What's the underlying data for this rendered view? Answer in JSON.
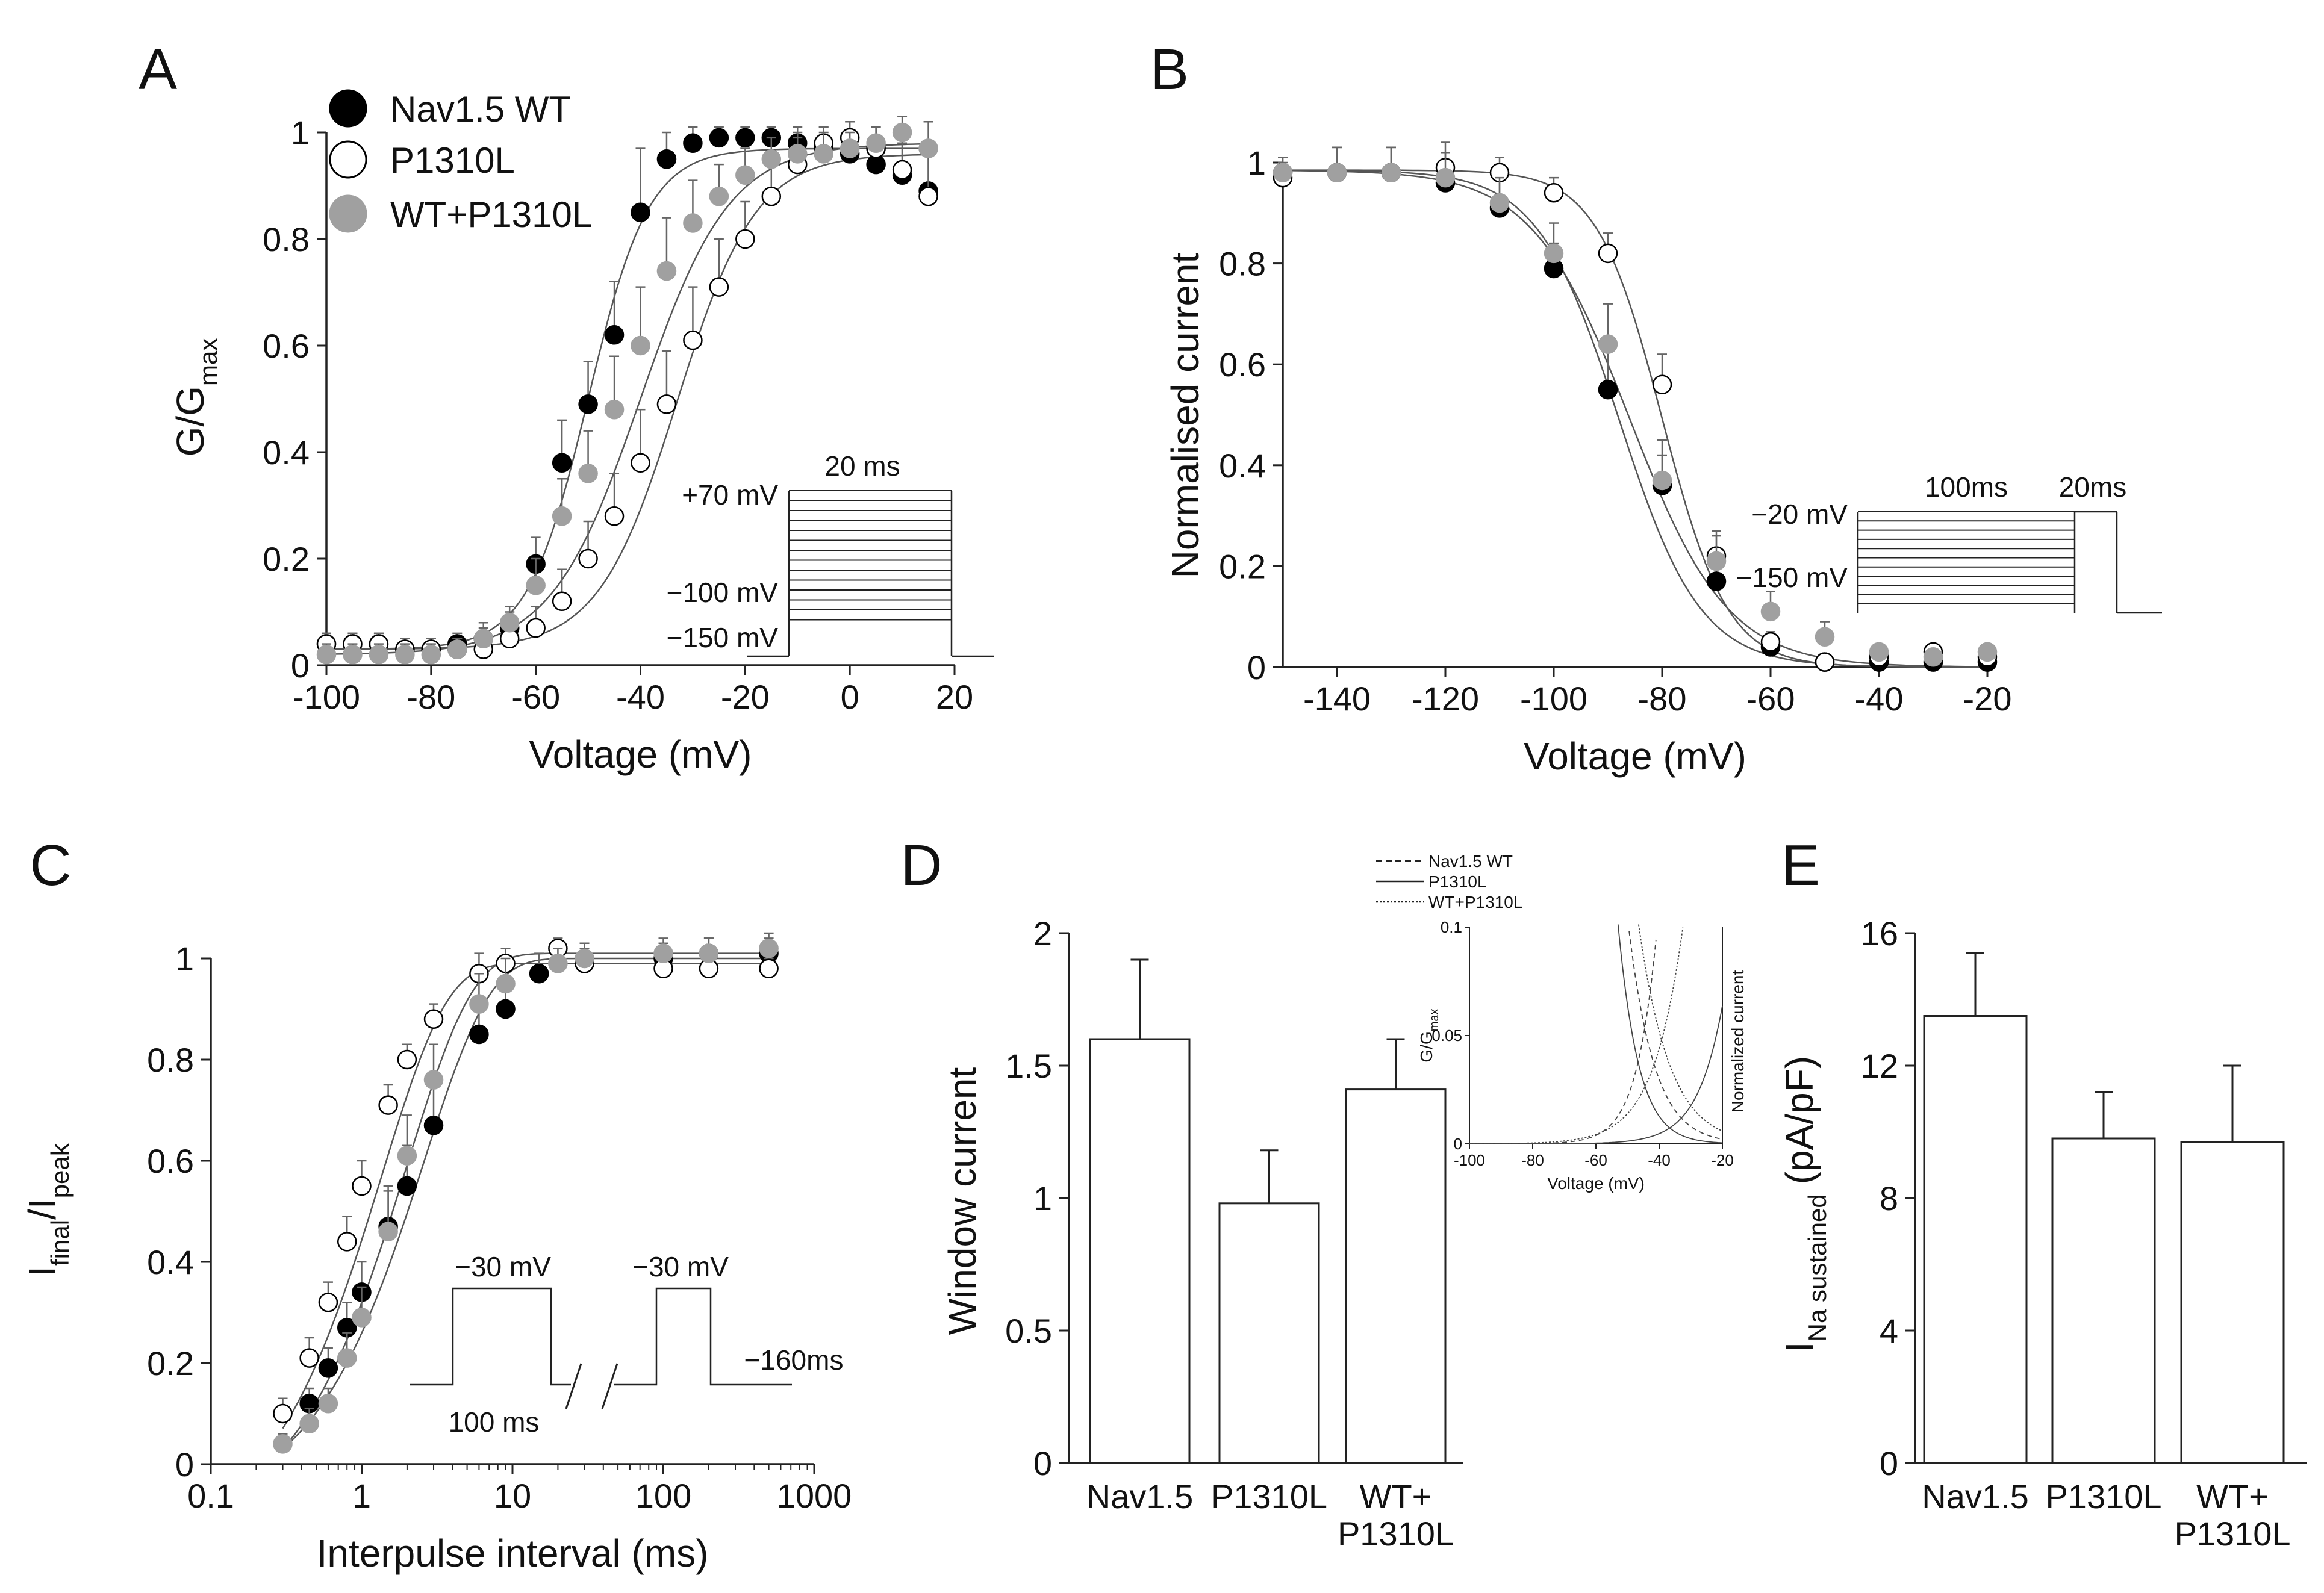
{
  "panels": [
    {
      "letter": "A",
      "type": "scatter",
      "xlabel": "Voltage (mV)",
      "ylabel_main": "G/G",
      "ylabel_sub": "max",
      "xlim": [
        -100,
        20
      ],
      "ylim": [
        0,
        1
      ],
      "xticks": [
        -100,
        -80,
        -60,
        -40,
        -20,
        0,
        20
      ],
      "yticks": [
        0,
        0.2,
        0.4,
        0.6,
        0.8,
        1
      ],
      "ytick_labels": [
        "0",
        "0.2",
        "0.4",
        "0.6",
        "0.8",
        "1"
      ],
      "legend": [
        "Nav1.5 WT",
        "P1310L",
        "WT+P1310L"
      ],
      "protocol": {
        "top_label": "20 ms",
        "levels": [
          "+70 mV",
          "−100 mV",
          "−150 mV"
        ]
      },
      "series": [
        {
          "name": "Nav1.5 WT",
          "style": "filled-black",
          "x": [
            -100,
            -95,
            -90,
            -85,
            -80,
            -75,
            -70,
            -65,
            -60,
            -55,
            -50,
            -45,
            -40,
            -35,
            -30,
            -25,
            -20,
            -15,
            -10,
            -5,
            0,
            5,
            10,
            15
          ],
          "y": [
            0.04,
            0.04,
            0.04,
            0.03,
            0.03,
            0.04,
            0.05,
            0.07,
            0.19,
            0.38,
            0.49,
            0.62,
            0.85,
            0.95,
            0.98,
            0.99,
            0.99,
            0.99,
            0.98,
            0.97,
            0.96,
            0.94,
            0.92,
            0.89
          ],
          "err": [
            0.02,
            0.02,
            0.02,
            0.02,
            0.02,
            0.02,
            0.02,
            0.03,
            0.05,
            0.08,
            0.08,
            0.1,
            0.12,
            0.05,
            0.03,
            0.02,
            0.02,
            0.02,
            0.03,
            0.04,
            0.04,
            0.05,
            0.06,
            0.08
          ]
        },
        {
          "name": "P1310L",
          "style": "open",
          "x": [
            -100,
            -95,
            -90,
            -85,
            -80,
            -75,
            -70,
            -65,
            -60,
            -55,
            -50,
            -45,
            -40,
            -35,
            -30,
            -25,
            -20,
            -15,
            -10,
            -5,
            0,
            5,
            10,
            15
          ],
          "y": [
            0.04,
            0.04,
            0.04,
            0.03,
            0.03,
            0.03,
            0.03,
            0.05,
            0.07,
            0.12,
            0.2,
            0.28,
            0.38,
            0.49,
            0.61,
            0.71,
            0.8,
            0.88,
            0.94,
            0.98,
            0.99,
            0.97,
            0.93,
            0.88
          ],
          "err": [
            0.02,
            0.02,
            0.02,
            0.02,
            0.02,
            0.02,
            0.02,
            0.02,
            0.04,
            0.06,
            0.07,
            0.08,
            0.1,
            0.1,
            0.1,
            0.09,
            0.07,
            0.06,
            0.05,
            0.03,
            0.03,
            0.04,
            0.06,
            0.08
          ]
        },
        {
          "name": "WT+P1310L",
          "style": "filled-gray",
          "x": [
            -100,
            -95,
            -90,
            -85,
            -80,
            -75,
            -70,
            -65,
            -60,
            -55,
            -50,
            -45,
            -40,
            -35,
            -30,
            -25,
            -20,
            -15,
            -10,
            -5,
            0,
            5,
            10,
            15
          ],
          "y": [
            0.02,
            0.02,
            0.02,
            0.02,
            0.02,
            0.03,
            0.05,
            0.08,
            0.15,
            0.28,
            0.36,
            0.48,
            0.6,
            0.74,
            0.83,
            0.88,
            0.92,
            0.95,
            0.96,
            0.96,
            0.97,
            0.98,
            1.0,
            0.97
          ],
          "err": [
            0.02,
            0.02,
            0.02,
            0.02,
            0.02,
            0.02,
            0.03,
            0.03,
            0.05,
            0.07,
            0.08,
            0.1,
            0.11,
            0.1,
            0.08,
            0.06,
            0.05,
            0.04,
            0.04,
            0.04,
            0.03,
            0.03,
            0.03,
            0.05
          ]
        }
      ]
    },
    {
      "letter": "B",
      "type": "scatter",
      "xlabel": "Voltage (mV)",
      "ylabel": "Normalised current",
      "xlim": [
        -150,
        -20
      ],
      "ylim": [
        0,
        1
      ],
      "xticks": [
        -140,
        -120,
        -100,
        -80,
        -60,
        -40,
        -20
      ],
      "yticks": [
        0,
        0.2,
        0.4,
        0.6,
        0.8,
        1
      ],
      "ytick_labels": [
        "0",
        "0.2",
        "0.4",
        "0.6",
        "0.8",
        "1"
      ],
      "protocol": {
        "labels": [
          "100ms",
          "20ms"
        ],
        "levels": [
          "−20 mV",
          "−150 mV"
        ]
      },
      "series": [
        {
          "name": "Nav1.5 WT",
          "style": "filled-black",
          "x": [
            -150,
            -140,
            -130,
            -120,
            -110,
            -100,
            -90,
            -80,
            -70,
            -60,
            -50,
            -40,
            -30,
            -20
          ],
          "y": [
            0.98,
            0.98,
            0.98,
            0.96,
            0.91,
            0.79,
            0.55,
            0.36,
            0.17,
            0.04,
            0.01,
            0.01,
            0.01,
            0.01
          ],
          "err": [
            0.03,
            0.05,
            0.05,
            0.08,
            0.07,
            0.05,
            0.08,
            0.06,
            0.04,
            0.02,
            0.01,
            0.01,
            0.01,
            0.01
          ]
        },
        {
          "name": "P1310L",
          "style": "open",
          "x": [
            -150,
            -140,
            -130,
            -120,
            -110,
            -100,
            -90,
            -80,
            -70,
            -60,
            -50,
            -40,
            -30,
            -20
          ],
          "y": [
            0.97,
            0.98,
            0.98,
            0.99,
            0.98,
            0.94,
            0.82,
            0.56,
            0.22,
            0.05,
            0.01,
            0.02,
            0.03,
            0.02
          ],
          "err": [
            0.03,
            0.05,
            0.05,
            0.03,
            0.03,
            0.03,
            0.04,
            0.06,
            0.04,
            0.02,
            0.01,
            0.01,
            0.01,
            0.01
          ]
        },
        {
          "name": "WT+P1310L",
          "style": "filled-gray",
          "x": [
            -150,
            -140,
            -130,
            -120,
            -110,
            -100,
            -90,
            -80,
            -70,
            -60,
            -50,
            -40,
            -30,
            -20
          ],
          "y": [
            0.98,
            0.98,
            0.98,
            0.97,
            0.92,
            0.82,
            0.64,
            0.37,
            0.21,
            0.11,
            0.06,
            0.03,
            0.02,
            0.03
          ],
          "err": [
            0.03,
            0.05,
            0.05,
            0.05,
            0.05,
            0.06,
            0.08,
            0.08,
            0.06,
            0.04,
            0.03,
            0.01,
            0.01,
            0.01
          ]
        }
      ]
    },
    {
      "letter": "C",
      "type": "scatter",
      "xlabel": "Interpulse interval (ms)",
      "ylabel_main": "I",
      "ylabel_sub1": "final",
      "ylabel_mid": "/I",
      "ylabel_sub2": "peak",
      "xscale": "log",
      "xlim": [
        0.1,
        1000
      ],
      "ylim": [
        0,
        1
      ],
      "xticks": [
        0.1,
        1,
        10,
        100,
        1000
      ],
      "xtick_labels": [
        "0.1",
        "1",
        "10",
        "100",
        "1000"
      ],
      "yticks": [
        0,
        0.2,
        0.4,
        0.6,
        0.8,
        1
      ],
      "ytick_labels": [
        "0",
        "0.2",
        "0.4",
        "0.6",
        "0.8",
        "1"
      ],
      "protocol": {
        "labels": [
          "−30 mV",
          "−30 mV",
          "−160ms",
          "100 ms"
        ]
      },
      "series": [
        {
          "name": "Nav1.5 WT",
          "style": "filled-black",
          "x": [
            0.45,
            0.6,
            0.8,
            1,
            1.5,
            2,
            3,
            6,
            9,
            15,
            30,
            100,
            200,
            500
          ],
          "y": [
            0.12,
            0.19,
            0.27,
            0.34,
            0.47,
            0.55,
            0.67,
            0.85,
            0.9,
            0.97,
            0.99,
            1.0,
            1.01,
            1.01
          ],
          "err": [
            0.03,
            0.04,
            0.05,
            0.06,
            0.08,
            0.08,
            0.08,
            0.06,
            0.05,
            0.04,
            0.03,
            0.03,
            0.03,
            0.03
          ]
        },
        {
          "name": "P1310L",
          "style": "open",
          "x": [
            0.3,
            0.45,
            0.6,
            0.8,
            1,
            1.5,
            2,
            3,
            6,
            9,
            20,
            30,
            100,
            200,
            500
          ],
          "y": [
            0.1,
            0.21,
            0.32,
            0.44,
            0.55,
            0.71,
            0.8,
            0.88,
            0.97,
            0.99,
            1.02,
            0.99,
            0.98,
            0.98,
            0.98
          ],
          "err": [
            0.03,
            0.04,
            0.04,
            0.05,
            0.05,
            0.04,
            0.03,
            0.03,
            0.04,
            0.03,
            0.02,
            0.02,
            0.02,
            0.02,
            0.02
          ]
        },
        {
          "name": "WT+P1310L",
          "style": "filled-gray",
          "x": [
            0.3,
            0.45,
            0.6,
            0.8,
            1,
            1.5,
            2,
            3,
            6,
            9,
            20,
            30,
            100,
            200,
            500
          ],
          "y": [
            0.04,
            0.08,
            0.12,
            0.21,
            0.29,
            0.46,
            0.61,
            0.76,
            0.91,
            0.95,
            0.99,
            1.0,
            1.01,
            1.01,
            1.02
          ],
          "err": [
            0.02,
            0.03,
            0.03,
            0.05,
            0.06,
            0.08,
            0.08,
            0.07,
            0.06,
            0.05,
            0.03,
            0.03,
            0.03,
            0.03,
            0.03
          ]
        }
      ]
    },
    {
      "letter": "D",
      "type": "bar",
      "ylabel": "Window current",
      "ylim": [
        0,
        2
      ],
      "yticks": [
        0,
        0.5,
        1,
        1.5,
        2
      ],
      "ytick_labels": [
        "0",
        "0.5",
        "1",
        "1.5",
        "2"
      ],
      "categories": [
        [
          "Nav1.5"
        ],
        [
          "P1310L"
        ],
        [
          "WT+",
          "P1310L"
        ]
      ],
      "values": [
        1.6,
        0.98,
        1.41
      ],
      "errors": [
        0.3,
        0.2,
        0.19
      ],
      "legend": [
        "Nav1.5 WT",
        "P1310L",
        "WT+P1310L"
      ],
      "inset": {
        "xlabel": "Voltage (mV)",
        "ylabel_left": "G/G",
        "ylabel_left_sub": "max",
        "ylabel_right": "Normalized current",
        "xlim": [
          -100,
          -20
        ],
        "ylim": [
          0,
          0.1
        ],
        "xticks": [
          -100,
          -80,
          -60,
          -40,
          -20
        ],
        "yticks": [
          0,
          0.05,
          0.1
        ],
        "ytick_labels": [
          "0",
          "0.05",
          "0.1"
        ]
      }
    },
    {
      "letter": "E",
      "type": "bar",
      "ylabel_main": "I",
      "ylabel_sub": "Na sustained",
      "ylabel_unit": "(pA/pF)",
      "ylim": [
        0,
        16
      ],
      "yticks": [
        0,
        4,
        8,
        12,
        16
      ],
      "ytick_labels": [
        "0",
        "4",
        "8",
        "12",
        "16"
      ],
      "categories": [
        [
          "Nav1.5"
        ],
        [
          "P1310L"
        ],
        [
          "WT+",
          "P1310L"
        ]
      ],
      "values": [
        13.5,
        9.8,
        9.7
      ],
      "errors": [
        1.9,
        1.4,
        2.3
      ]
    }
  ],
  "colors": {
    "black": "#000000",
    "gray": "#a0a0a0",
    "open_fill": "#ffffff",
    "line": "#333333",
    "axis": "#222222"
  }
}
